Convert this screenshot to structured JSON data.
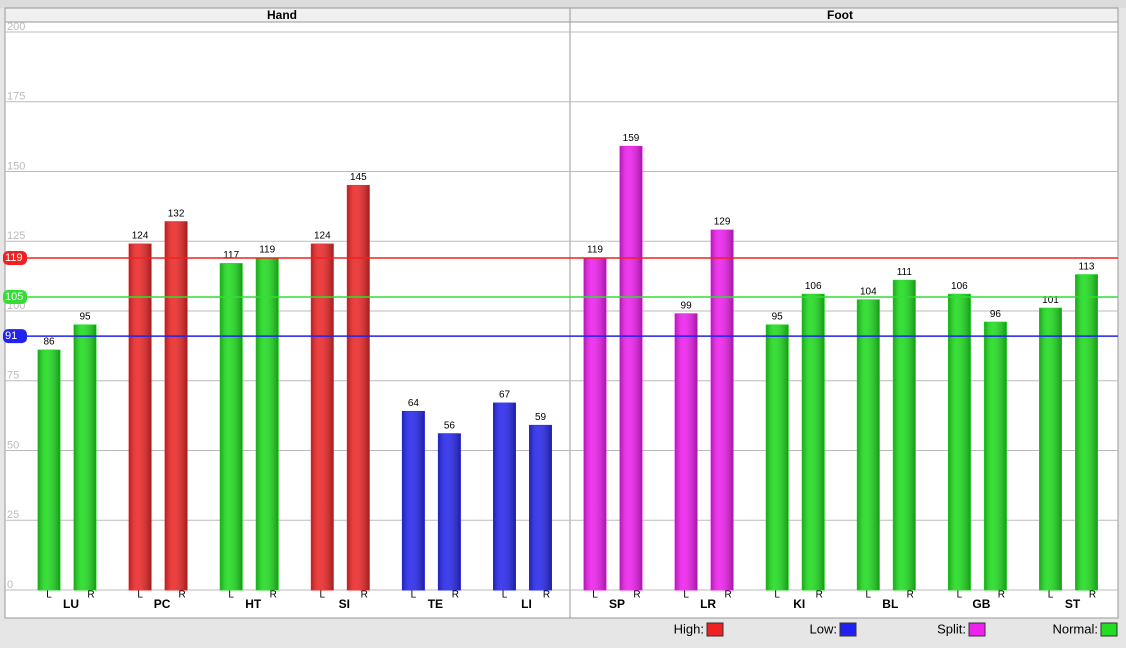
{
  "chart_data": {
    "type": "bar",
    "ylim": [
      0,
      200
    ],
    "yticks": [
      0,
      25,
      50,
      75,
      100,
      125,
      150,
      175,
      200
    ],
    "grid": true,
    "reference_lines": [
      {
        "value": 119,
        "color": "#ee2222"
      },
      {
        "value": 105,
        "color": "#33dd33"
      },
      {
        "value": 91,
        "color": "#2222ee"
      }
    ],
    "panels": [
      {
        "title": "Hand",
        "categories": [
          "LU",
          "PC",
          "HT",
          "SI",
          "TE",
          "LI"
        ],
        "colors": [
          "#22dd22",
          "#ee2a2a",
          "#22dd22",
          "#ee2a2a",
          "#2a2aee",
          "#2a2aee"
        ],
        "series": [
          {
            "name": "L",
            "values": [
              86,
              124,
              117,
              124,
              64,
              67
            ]
          },
          {
            "name": "R",
            "values": [
              95,
              132,
              119,
              145,
              56,
              59
            ]
          }
        ]
      },
      {
        "title": "Foot",
        "categories": [
          "SP",
          "LR",
          "KI",
          "BL",
          "GB",
          "ST"
        ],
        "colors": [
          "#ee22ee",
          "#ee22ee",
          "#22dd22",
          "#22dd22",
          "#22dd22",
          "#22dd22"
        ],
        "series": [
          {
            "name": "L",
            "values": [
              119,
              99,
              95,
              104,
              106,
              101
            ]
          },
          {
            "name": "R",
            "values": [
              159,
              129,
              106,
              111,
              96,
              113
            ]
          }
        ]
      }
    ],
    "legend": [
      {
        "name": "High:",
        "color": "#ee2222"
      },
      {
        "name": "Low:",
        "color": "#2222ee"
      },
      {
        "name": "Split:",
        "color": "#ee22ee"
      },
      {
        "name": "Normal:",
        "color": "#22dd22"
      }
    ]
  }
}
